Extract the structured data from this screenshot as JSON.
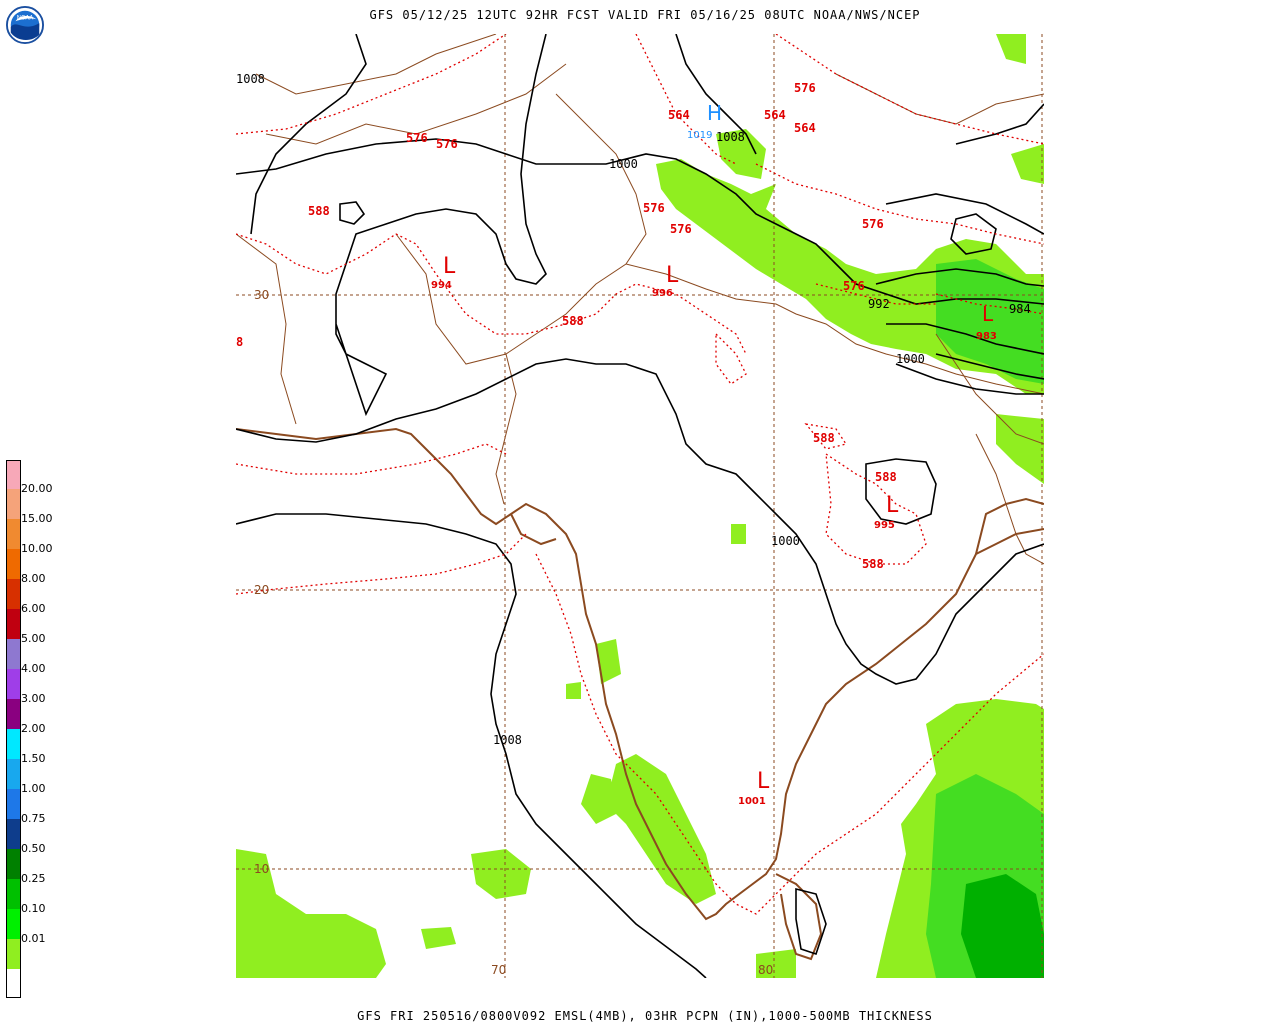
{
  "header": {
    "title": "GFS 05/12/25 12UTC 92HR FCST VALID FRI 05/16/25 08UTC NOAA/NWS/NCEP",
    "footer": "GFS FRI 250516/0800V092 EMSL(4MB), 03HR PCPN (IN),1000-500MB THICKNESS"
  },
  "logo": {
    "name": "noaa-logo",
    "text": "NOAA"
  },
  "legend": {
    "items": [
      {
        "label": "",
        "color": "#f7a8b8"
      },
      {
        "label": "20.00",
        "color": "#f5a37a"
      },
      {
        "label": "15.00",
        "color": "#f08a30"
      },
      {
        "label": "10.00",
        "color": "#ef6a00"
      },
      {
        "label": "8.00",
        "color": "#d73000"
      },
      {
        "label": "6.00",
        "color": "#c00010"
      },
      {
        "label": "5.00",
        "color": "#8e78d0"
      },
      {
        "label": "4.00",
        "color": "#9f3ee8"
      },
      {
        "label": "3.00",
        "color": "#8a0080"
      },
      {
        "label": "2.00",
        "color": "#00e8ff"
      },
      {
        "label": "1.50",
        "color": "#18a8ee"
      },
      {
        "label": "1.00",
        "color": "#1e78e8"
      },
      {
        "label": "0.75",
        "color": "#0e3d8c"
      },
      {
        "label": "0.50",
        "color": "#008000"
      },
      {
        "label": "0.25",
        "color": "#00c000"
      },
      {
        "label": "0.10",
        "color": "#00f000"
      },
      {
        "label": "0.01",
        "color": "#90ee20"
      },
      {
        "label": "",
        "color": "#ffffff"
      }
    ]
  },
  "gridlabels": {
    "lat30": "30",
    "lat20": "20",
    "lat10": "10",
    "lon70": "70",
    "lon80": "80"
  },
  "pressure": {
    "high_symbol": "H",
    "high_value": "1019",
    "low_symbol": "L",
    "lows": [
      "994",
      "996",
      "995",
      "1001",
      "983"
    ],
    "isobars": [
      "1008",
      "1000",
      "1008",
      "992",
      "984",
      "1000",
      "1000",
      "1008",
      "984"
    ]
  },
  "thickness": {
    "labels": [
      "576",
      "576",
      "588",
      "564",
      "564",
      "576",
      "564",
      "576",
      "576",
      "576",
      "576",
      "588",
      "588",
      "588",
      "588",
      "588",
      "8"
    ]
  },
  "colors": {
    "thickness": "#e00000",
    "isobar": "#000000",
    "coast": "#8b4a20",
    "grid": "#8b4a20",
    "high": "#1e90ff",
    "precip_light": "#90ee20",
    "precip_med": "#44dd22",
    "precip_dark": "#00a000"
  }
}
